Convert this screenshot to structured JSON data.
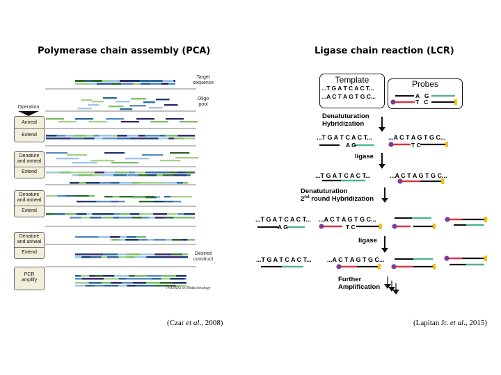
{
  "pca": {
    "title": "Polymerase chain assembly (PCA)",
    "right_labels": {
      "target": [
        "Target",
        "sequence"
      ],
      "oligo": [
        "Oligo",
        "pool"
      ],
      "desired": [
        "Desired",
        "construct"
      ]
    },
    "operation_label": "Operation",
    "steps": [
      {
        "labels": [
          "Anneal",
          "Extend"
        ]
      },
      {
        "labels": [
          "Denature and anneal",
          "Extend"
        ]
      },
      {
        "labels": [
          "Denature and anneal",
          "Extend"
        ]
      },
      {
        "labels": [
          "Denature and anneal",
          "Extend"
        ]
      },
      {
        "labels": [
          "PCR amplify"
        ]
      }
    ],
    "footer": "TRENDS in Biotechnology",
    "citation_prefix": "(Czar ",
    "citation_etal": "et al",
    "citation_suffix": "., 2008)"
  },
  "lcr": {
    "title": "Ligase chain reaction (LCR)",
    "template_label": "Template",
    "probes_label": "Probes",
    "template_top": "...T G A T C A C T...",
    "template_bottom": "...A C T A G T G C...",
    "probe_top": "A   G",
    "probe_bottom": "T   C",
    "step1": [
      "Denatuturation",
      "Hybridization"
    ],
    "row1_left": "...T G A T C A C T...",
    "row1_left_probe": "A G",
    "row1_right": "...A C T A G T G C...",
    "row1_right_probe": "T C",
    "ligase1": "ligase",
    "row2_left": "...T G A T C A C T...",
    "row2_right": "...A C T A G T G C...",
    "step2_line1": "Denatuturation",
    "step2_line2_pre": "2",
    "step2_line2_sup": "nd",
    "step2_line2_post": " round Hybridization",
    "row3_left": "...T G A T C A C T...",
    "row3_left_probe": "A G",
    "row3_mid": "...A C T A G T G C...",
    "row3_mid_probe": "T C",
    "ligase2": "ligase",
    "row4_left": "...T G A T C A C T...",
    "row4_mid": "...A C T A G T G C...",
    "step3": [
      "Further",
      "Amplification"
    ],
    "citation_prefix": "(Lapitan Jr. ",
    "citation_etal": "et al",
    "citation_suffix": "., 2015)"
  },
  "colors": {
    "strand_black": "#111111",
    "probe_green": "#4fb58a",
    "probe_red": "#d9343f",
    "probe_purple": "#7b3d9b",
    "probe_yellow": "#f2c200",
    "op_box_fill": "#f1eedb",
    "oligo_colors": [
      "#1f3b73",
      "#2e6a9e",
      "#5b8fc9",
      "#9fc5e8",
      "#2f6b2f",
      "#7dbf6b",
      "#3a2a6e",
      "#a8d18d"
    ]
  }
}
